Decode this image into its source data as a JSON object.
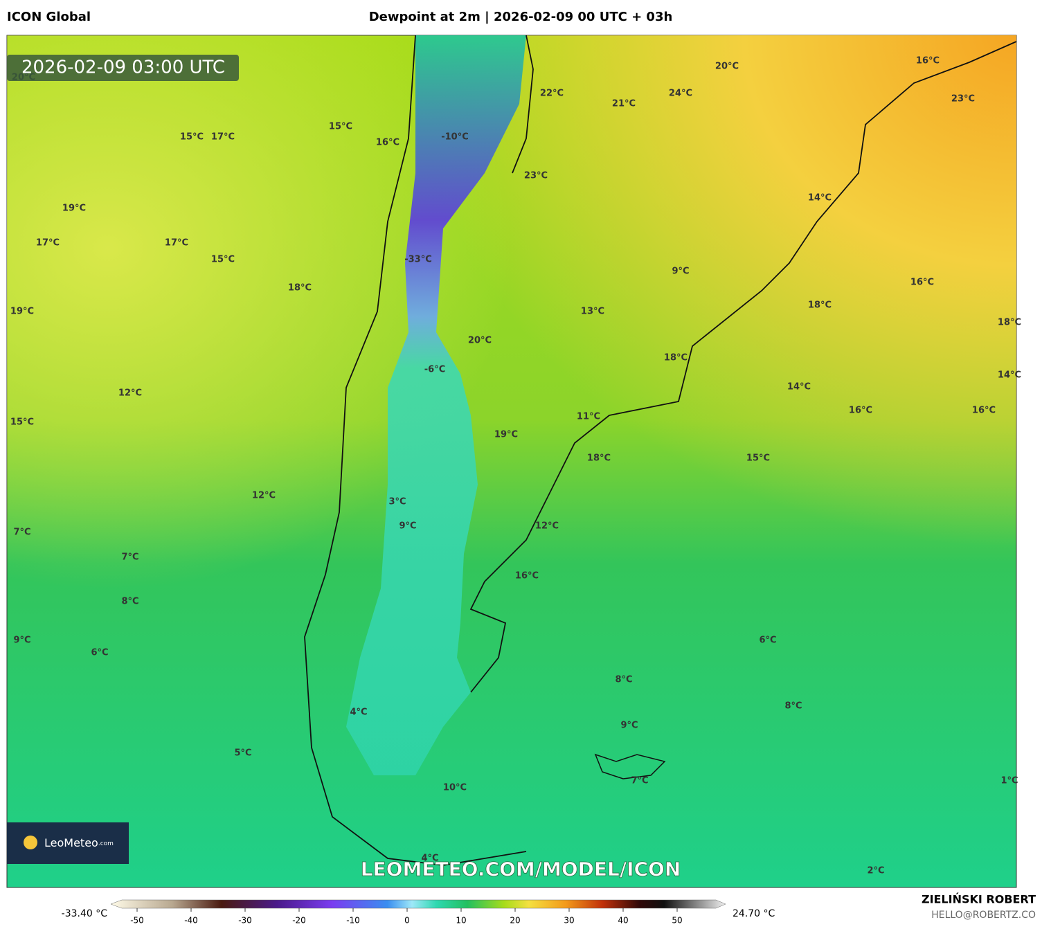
{
  "header": {
    "model": "ICON Global",
    "title": "Dewpoint at 2m | 2026-02-09 00 UTC + 03h"
  },
  "timestamp": "2026-02-09 03:00 UTC",
  "map_labels": [
    "20°C",
    "15°C",
    "15°C",
    "17°C",
    "16°C",
    "-10°C",
    "22°C",
    "21°C",
    "24°C",
    "20°C",
    "16°C",
    "23°C",
    "23°C",
    "14°C",
    "19°C",
    "17°C",
    "17°C",
    "15°C",
    "-33°C",
    "9°C",
    "16°C",
    "18°C",
    "18°C",
    "19°C",
    "13°C",
    "18°C",
    "20°C",
    "18°C",
    "-6°C",
    "14°C",
    "14°C",
    "12°C",
    "16°C",
    "16°C",
    "11°C",
    "15°C",
    "19°C",
    "18°C",
    "15°C",
    "12°C",
    "3°C",
    "9°C",
    "12°C",
    "7°C",
    "7°C",
    "16°C",
    "8°C",
    "9°C",
    "6°C",
    "6°C",
    "8°C",
    "4°C",
    "8°C",
    "9°C",
    "5°C",
    "7°C",
    "1°C",
    "10°C",
    "4°C",
    "2°C"
  ],
  "logo": {
    "name": "LeoMeteo",
    "suffix": ".com"
  },
  "watermark": "LEOMETEO.COM/MODEL/ICON",
  "colorbar": {
    "min_label": "-33.40 °C",
    "max_label": "24.70 °C",
    "ticks": [
      -50,
      -40,
      -30,
      -20,
      -10,
      0,
      10,
      20,
      30,
      40,
      50
    ]
  },
  "author": {
    "name": "ZIELIŃSKI ROBERT",
    "email": "HELLO@ROBERTZ.CO"
  }
}
